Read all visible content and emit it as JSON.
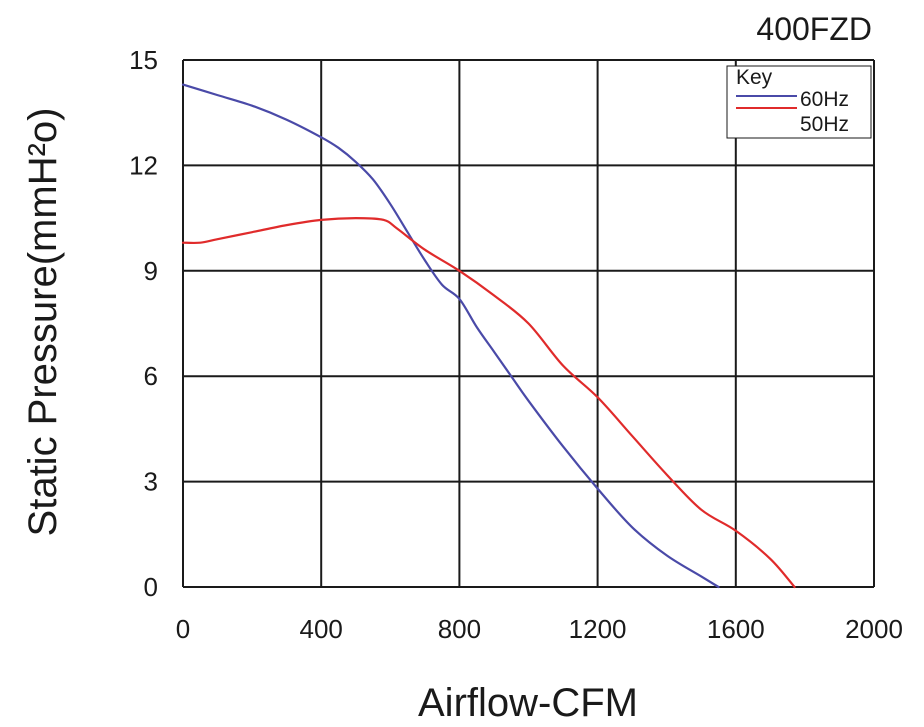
{
  "chart_data": {
    "type": "line",
    "title": "400FZD",
    "xlabel": "Airflow-CFM",
    "ylabel": "Static Pressure(mmH²o)",
    "xlim": [
      0,
      2000
    ],
    "ylim": [
      0,
      15
    ],
    "x_ticks": [
      "0",
      "400",
      "800",
      "1200",
      "1600",
      "2000"
    ],
    "y_ticks": [
      "0",
      "3",
      "6",
      "9",
      "12",
      "15"
    ],
    "grid": true,
    "legend": {
      "title": "Key",
      "position": "top-right"
    },
    "series": [
      {
        "name": "60Hz",
        "color": "#4a4aa8",
        "points": [
          [
            0,
            14.3
          ],
          [
            100,
            14.0
          ],
          [
            200,
            13.7
          ],
          [
            300,
            13.3
          ],
          [
            400,
            12.8
          ],
          [
            450,
            12.5
          ],
          [
            500,
            12.1
          ],
          [
            550,
            11.6
          ],
          [
            600,
            10.9
          ],
          [
            650,
            10.1
          ],
          [
            700,
            9.3
          ],
          [
            750,
            8.6
          ],
          [
            800,
            8.2
          ],
          [
            850,
            7.4
          ],
          [
            900,
            6.7
          ],
          [
            950,
            6.0
          ],
          [
            1000,
            5.3
          ],
          [
            1100,
            4.0
          ],
          [
            1200,
            2.8
          ],
          [
            1300,
            1.7
          ],
          [
            1400,
            0.9
          ],
          [
            1500,
            0.3
          ],
          [
            1550,
            0.0
          ]
        ]
      },
      {
        "name": "50Hz",
        "color": "#e02b2b",
        "points": [
          [
            0,
            9.8
          ],
          [
            50,
            9.8
          ],
          [
            100,
            9.9
          ],
          [
            200,
            10.1
          ],
          [
            300,
            10.3
          ],
          [
            400,
            10.45
          ],
          [
            500,
            10.5
          ],
          [
            580,
            10.45
          ],
          [
            620,
            10.2
          ],
          [
            700,
            9.6
          ],
          [
            800,
            9.0
          ],
          [
            900,
            8.3
          ],
          [
            1000,
            7.5
          ],
          [
            1100,
            6.3
          ],
          [
            1200,
            5.4
          ],
          [
            1300,
            4.3
          ],
          [
            1400,
            3.2
          ],
          [
            1500,
            2.2
          ],
          [
            1600,
            1.6
          ],
          [
            1700,
            0.8
          ],
          [
            1770,
            0.0
          ]
        ]
      }
    ]
  }
}
